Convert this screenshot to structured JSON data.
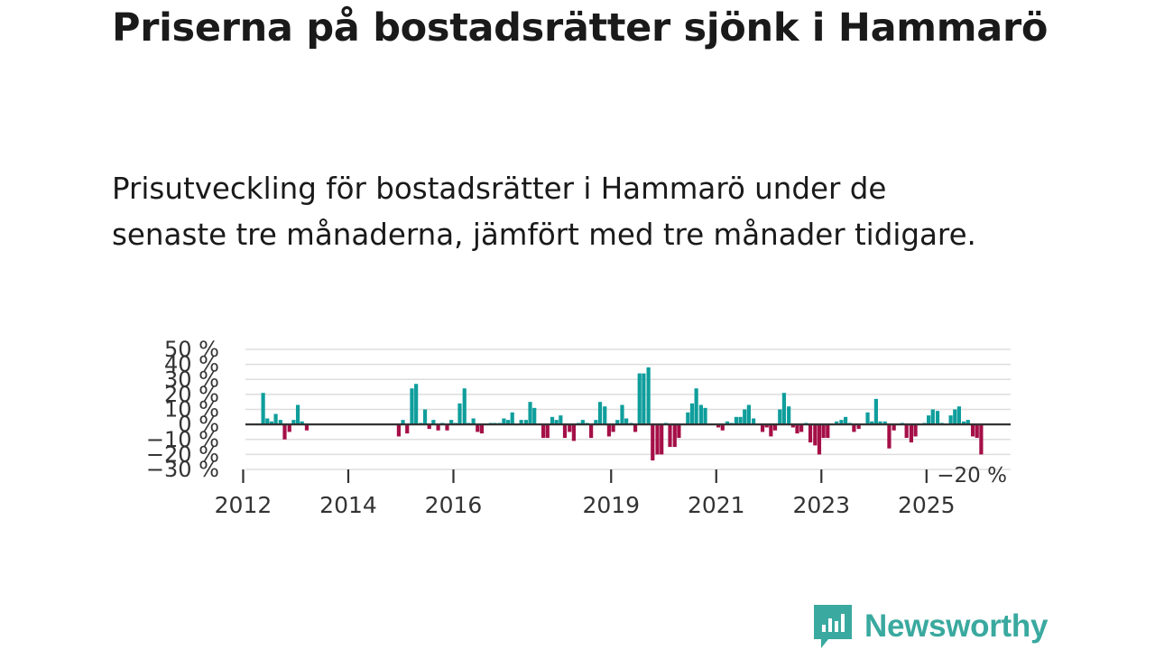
{
  "page": {
    "title": "Priserna på bostadsrätter sjönk i Hammarö",
    "subtitle": "Prisutveckling för bostadsrätter i Hammarö under de senaste tre månaderna, jämfört med tre månader tidigare."
  },
  "brand": {
    "name": "Newsworthy",
    "icon": "newsworthy-logo-icon"
  },
  "colors": {
    "positive": "#0f9e9c",
    "negative": "#a50f47",
    "grid": "#dddddd",
    "zero": "#333333",
    "brand": "#3aa99f"
  },
  "chart_data": {
    "type": "bar",
    "title": "Prisutveckling för bostadsrätter i Hammarö",
    "xlabel": "",
    "ylabel": "",
    "ylim": [
      -30,
      50
    ],
    "y_ticks": [
      50,
      40,
      30,
      20,
      10,
      0,
      -10,
      -20,
      -30
    ],
    "y_tick_labels": [
      "50 %",
      "40 %",
      "30 %",
      "20 %",
      "10 %",
      "0 %",
      "−10 %",
      "−20 %",
      "−30 %"
    ],
    "x_ticks": [
      {
        "label": "2012",
        "year": 2012.0
      },
      {
        "label": "2014",
        "year": 2014.0
      },
      {
        "label": "2016",
        "year": 2016.0
      },
      {
        "label": "2019",
        "year": 2019.0
      },
      {
        "label": "2021",
        "year": 2021.0
      },
      {
        "label": "2023",
        "year": 2023.0
      },
      {
        "label": "2025",
        "year": 2025.0
      }
    ],
    "x_domain": [
      2011.7,
      2026.6
    ],
    "last_value_label": "−20 %",
    "unit": "%",
    "series": [
      {
        "name": "Prisutveckling",
        "points": [
          [
            2012.38,
            21
          ],
          [
            2012.46,
            4
          ],
          [
            2012.54,
            2
          ],
          [
            2012.62,
            7
          ],
          [
            2012.71,
            3
          ],
          [
            2012.79,
            -10
          ],
          [
            2012.88,
            -5
          ],
          [
            2012.96,
            3
          ],
          [
            2013.04,
            13
          ],
          [
            2013.12,
            2
          ],
          [
            2013.21,
            -4
          ],
          [
            2014.96,
            -8
          ],
          [
            2015.04,
            3
          ],
          [
            2015.12,
            -6
          ],
          [
            2015.21,
            24
          ],
          [
            2015.29,
            27
          ],
          [
            2015.38,
            1
          ],
          [
            2015.46,
            10
          ],
          [
            2015.54,
            -3
          ],
          [
            2015.62,
            3
          ],
          [
            2015.71,
            -4
          ],
          [
            2015.79,
            1
          ],
          [
            2015.88,
            -4
          ],
          [
            2015.96,
            3
          ],
          [
            2016.04,
            1
          ],
          [
            2016.12,
            14
          ],
          [
            2016.21,
            24
          ],
          [
            2016.29,
            1
          ],
          [
            2016.38,
            4
          ],
          [
            2016.46,
            -5
          ],
          [
            2016.54,
            -6
          ],
          [
            2016.71,
            1
          ],
          [
            2016.79,
            1
          ],
          [
            2016.88,
            1
          ],
          [
            2016.96,
            4
          ],
          [
            2017.04,
            3
          ],
          [
            2017.12,
            8
          ],
          [
            2017.29,
            3
          ],
          [
            2017.38,
            3
          ],
          [
            2017.46,
            15
          ],
          [
            2017.54,
            11
          ],
          [
            2017.71,
            -9
          ],
          [
            2017.79,
            -9
          ],
          [
            2017.88,
            5
          ],
          [
            2017.96,
            3
          ],
          [
            2018.04,
            6
          ],
          [
            2018.12,
            -9
          ],
          [
            2018.21,
            -5
          ],
          [
            2018.29,
            -11
          ],
          [
            2018.38,
            1
          ],
          [
            2018.46,
            3
          ],
          [
            2018.54,
            1
          ],
          [
            2018.62,
            -9
          ],
          [
            2018.71,
            3
          ],
          [
            2018.79,
            15
          ],
          [
            2018.88,
            12
          ],
          [
            2018.96,
            -8
          ],
          [
            2019.04,
            -5
          ],
          [
            2019.12,
            3
          ],
          [
            2019.21,
            13
          ],
          [
            2019.29,
            4
          ],
          [
            2019.38,
            1
          ],
          [
            2019.46,
            -5
          ],
          [
            2019.54,
            34
          ],
          [
            2019.62,
            34
          ],
          [
            2019.71,
            38
          ],
          [
            2019.79,
            -24
          ],
          [
            2019.88,
            -20
          ],
          [
            2019.96,
            -20
          ],
          [
            2020.04,
            1
          ],
          [
            2020.12,
            -15
          ],
          [
            2020.21,
            -15
          ],
          [
            2020.29,
            -9
          ],
          [
            2020.46,
            8
          ],
          [
            2020.54,
            14
          ],
          [
            2020.62,
            24
          ],
          [
            2020.71,
            13
          ],
          [
            2020.79,
            11
          ],
          [
            2021.04,
            -2
          ],
          [
            2021.12,
            -4
          ],
          [
            2021.21,
            2
          ],
          [
            2021.29,
            1
          ],
          [
            2021.38,
            5
          ],
          [
            2021.46,
            5
          ],
          [
            2021.54,
            10
          ],
          [
            2021.62,
            13
          ],
          [
            2021.71,
            4
          ],
          [
            2021.88,
            -5
          ],
          [
            2021.96,
            -2
          ],
          [
            2022.04,
            -8
          ],
          [
            2022.12,
            -4
          ],
          [
            2022.21,
            10
          ],
          [
            2022.29,
            21
          ],
          [
            2022.38,
            12
          ],
          [
            2022.46,
            -2
          ],
          [
            2022.54,
            -6
          ],
          [
            2022.62,
            -5
          ],
          [
            2022.71,
            1
          ],
          [
            2022.79,
            -12
          ],
          [
            2022.88,
            -14
          ],
          [
            2022.96,
            -20
          ],
          [
            2023.04,
            -9
          ],
          [
            2023.12,
            -9
          ],
          [
            2023.29,
            2
          ],
          [
            2023.38,
            3
          ],
          [
            2023.46,
            5
          ],
          [
            2023.54,
            1
          ],
          [
            2023.62,
            -5
          ],
          [
            2023.71,
            -3
          ],
          [
            2023.88,
            8
          ],
          [
            2023.96,
            2
          ],
          [
            2024.04,
            17
          ],
          [
            2024.12,
            2
          ],
          [
            2024.21,
            2
          ],
          [
            2024.29,
            -16
          ],
          [
            2024.38,
            -4
          ],
          [
            2024.54,
            1
          ],
          [
            2024.62,
            -9
          ],
          [
            2024.71,
            -12
          ],
          [
            2024.79,
            -8
          ],
          [
            2024.96,
            1
          ],
          [
            2025.04,
            6
          ],
          [
            2025.12,
            10
          ],
          [
            2025.21,
            9
          ],
          [
            2025.29,
            1
          ],
          [
            2025.46,
            6
          ],
          [
            2025.54,
            10
          ],
          [
            2025.62,
            12
          ],
          [
            2025.71,
            2
          ],
          [
            2025.79,
            3
          ],
          [
            2025.88,
            -8
          ],
          [
            2025.96,
            -9
          ],
          [
            2026.04,
            -20
          ]
        ]
      }
    ]
  }
}
